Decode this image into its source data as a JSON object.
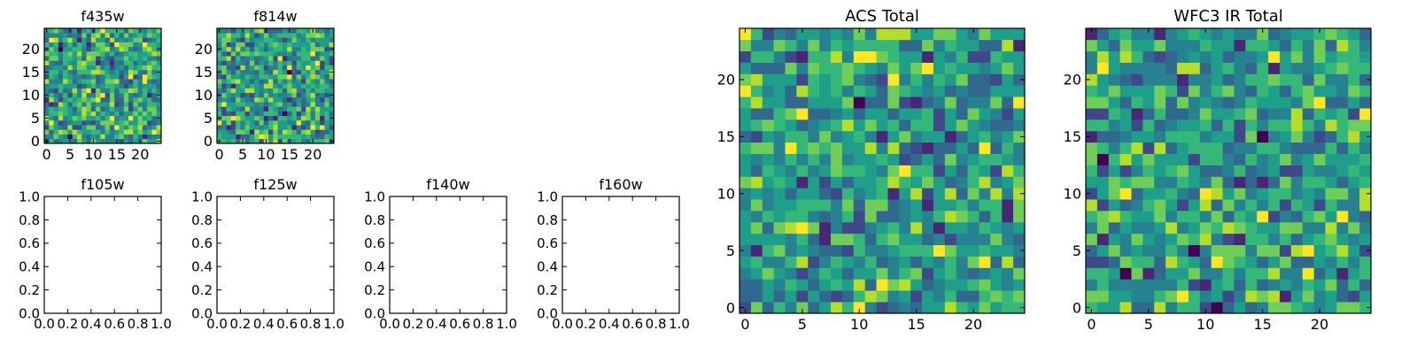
{
  "colormap": "viridis",
  "colors": {
    "viridis": [
      "#440154",
      "#482777",
      "#3e4989",
      "#31688e",
      "#26828e",
      "#1f9e89",
      "#35b779",
      "#6ece58",
      "#b5de2b",
      "#fde725"
    ],
    "axis": "#000000",
    "background": "#ffffff"
  },
  "chart_data": [
    {
      "type": "heatmap",
      "title": "f435w",
      "size": 25,
      "seed": 11,
      "xticks": [
        "0",
        "5",
        "10",
        "15",
        "20"
      ],
      "yticks": [
        "0",
        "5",
        "10",
        "15",
        "20"
      ],
      "xlim": [
        -0.5,
        24.5
      ],
      "ylim": [
        -0.5,
        24.5
      ],
      "grid": false
    },
    {
      "type": "heatmap",
      "title": "f814w",
      "size": 25,
      "seed": 29,
      "xticks": [
        "0",
        "5",
        "10",
        "15",
        "20"
      ],
      "yticks": [
        "0",
        "5",
        "10",
        "15",
        "20"
      ],
      "xlim": [
        -0.5,
        24.5
      ],
      "ylim": [
        -0.5,
        24.5
      ],
      "grid": false
    },
    {
      "type": "empty",
      "title": "f105w",
      "xticks": [
        "0.0",
        "0.2",
        "0.4",
        "0.6",
        "0.8",
        "1.0"
      ],
      "yticks": [
        "0.0",
        "0.2",
        "0.4",
        "0.6",
        "0.8",
        "1.0"
      ],
      "xlim": [
        0,
        1
      ],
      "ylim": [
        0,
        1
      ],
      "grid": false
    },
    {
      "type": "empty",
      "title": "f125w",
      "xticks": [
        "0.0",
        "0.2",
        "0.4",
        "0.6",
        "0.8",
        "1.0"
      ],
      "yticks": [
        "0.0",
        "0.2",
        "0.4",
        "0.6",
        "0.8",
        "1.0"
      ],
      "xlim": [
        0,
        1
      ],
      "ylim": [
        0,
        1
      ],
      "grid": false
    },
    {
      "type": "empty",
      "title": "f140w",
      "xticks": [
        "0.0",
        "0.2",
        "0.4",
        "0.6",
        "0.8",
        "1.0"
      ],
      "yticks": [
        "0.0",
        "0.2",
        "0.4",
        "0.6",
        "0.8",
        "1.0"
      ],
      "xlim": [
        0,
        1
      ],
      "ylim": [
        0,
        1
      ],
      "grid": false
    },
    {
      "type": "empty",
      "title": "f160w",
      "xticks": [
        "0.0",
        "0.2",
        "0.4",
        "0.6",
        "0.8",
        "1.0"
      ],
      "yticks": [
        "0.0",
        "0.2",
        "0.4",
        "0.6",
        "0.8",
        "1.0"
      ],
      "xlim": [
        0,
        1
      ],
      "ylim": [
        0,
        1
      ],
      "grid": false
    },
    {
      "type": "heatmap",
      "title": "ACS Total",
      "size": 25,
      "seed": 47,
      "xticks": [
        "0",
        "5",
        "10",
        "15",
        "20"
      ],
      "yticks": [
        "0",
        "5",
        "10",
        "15",
        "20"
      ],
      "xlim": [
        -0.5,
        24.5
      ],
      "ylim": [
        -0.5,
        24.5
      ],
      "grid": false
    },
    {
      "type": "heatmap",
      "title": "WFC3 IR Total",
      "size": 25,
      "seed": 83,
      "xticks": [
        "0",
        "5",
        "10",
        "15",
        "20"
      ],
      "yticks": [
        "0",
        "5",
        "10",
        "15",
        "20"
      ],
      "xlim": [
        -0.5,
        24.5
      ],
      "ylim": [
        -0.5,
        24.5
      ],
      "grid": false
    }
  ]
}
